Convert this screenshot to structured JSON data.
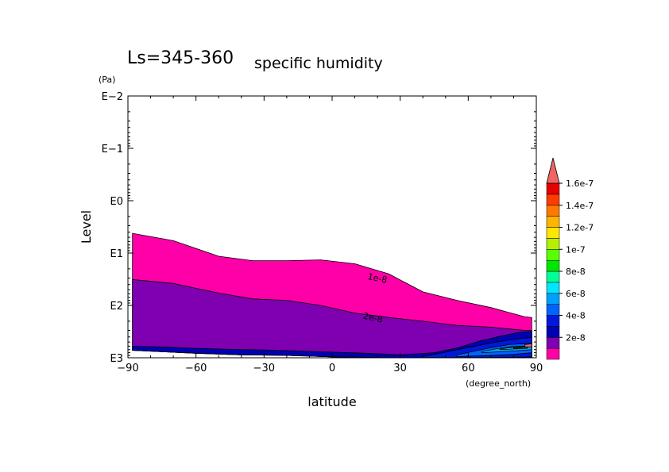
{
  "chart_data": {
    "type": "contour",
    "title_period": "Ls=345-360",
    "title_variable": "specific humidity",
    "xlabel": "latitude",
    "x_units": "(degree_north)",
    "ylabel": "Level",
    "y_units": "(Pa)",
    "xlim": [
      -90,
      90
    ],
    "x_ticks": [
      -90,
      -60,
      -30,
      0,
      30,
      60,
      90
    ],
    "x_tick_labels": [
      "−90",
      "−60",
      "−30",
      "0",
      "30",
      "60",
      "90"
    ],
    "y_scale": "log",
    "y_decade_exponents": [
      -2,
      -1,
      0,
      1,
      2,
      3
    ],
    "y_tick_labels": [
      "E−2",
      "E−1",
      "E0",
      "E1",
      "E2",
      "E3"
    ],
    "colorbar": {
      "levels": [
        0,
        1e-08,
        2e-08,
        3e-08,
        4e-08,
        5e-08,
        6e-08,
        7e-08,
        8e-08,
        9e-08,
        1e-07,
        1.1e-07,
        1.2e-07,
        1.3e-07,
        1.4e-07,
        1.5e-07,
        1.6e-07,
        1.7e-07
      ],
      "colors": [
        "#ff00a8",
        "#7e00b0",
        "#0000b4",
        "#0018dc",
        "#0064ff",
        "#00a0ff",
        "#00e6ff",
        "#00ff96",
        "#00e600",
        "#5aff00",
        "#b4f000",
        "#ffe600",
        "#ffb400",
        "#ff7800",
        "#ff3c00",
        "#e60000",
        "#f06464"
      ],
      "labels": [
        "2e-8",
        "4e-8",
        "6e-8",
        "8e-8",
        "1e-7",
        "1.2e-7",
        "1.4e-7",
        "1.6e-7"
      ],
      "label_levels": [
        2e-08,
        4e-08,
        6e-08,
        8e-08,
        1e-07,
        1.2e-07,
        1.4e-07,
        1.6e-07
      ],
      "extend": "max"
    },
    "contour_labels": [
      {
        "text": "1e-8",
        "lat": 20,
        "pressure": 30
      },
      {
        "text": "2e-8",
        "lat": 18,
        "pressure": 170
      }
    ],
    "regions": [
      {
        "name": "band_0_1e-8",
        "color": "#ff00a8",
        "top": [
          [
            -88,
            4.2
          ],
          [
            -70,
            5.8
          ],
          [
            -50,
            11.5
          ],
          [
            -35,
            14
          ],
          [
            -20,
            14
          ],
          [
            -5,
            13.5
          ],
          [
            10,
            16
          ],
          [
            25,
            25
          ],
          [
            40,
            55
          ],
          [
            55,
            80
          ],
          [
            70,
            110
          ],
          [
            85,
            165
          ],
          [
            88,
            170
          ]
        ],
        "bottom": [
          [
            -88,
            720
          ],
          [
            -60,
            820
          ],
          [
            -40,
            880
          ],
          [
            -20,
            900
          ],
          [
            0,
            960
          ],
          [
            30,
            1000
          ],
          [
            60,
            1000
          ],
          [
            88,
            1000
          ]
        ]
      },
      {
        "name": "band_1e-8_2e-8",
        "color": "#7e00b0",
        "top": [
          [
            -88,
            32
          ],
          [
            -70,
            38
          ],
          [
            -50,
            58
          ],
          [
            -35,
            75
          ],
          [
            -20,
            80
          ],
          [
            -5,
            100
          ],
          [
            10,
            140
          ],
          [
            25,
            170
          ],
          [
            40,
            200
          ],
          [
            55,
            240
          ],
          [
            70,
            260
          ],
          [
            85,
            300
          ],
          [
            88,
            300
          ]
        ],
        "bottom": [
          [
            -88,
            720
          ],
          [
            -60,
            820
          ],
          [
            -40,
            880
          ],
          [
            -20,
            900
          ],
          [
            0,
            960
          ],
          [
            30,
            1000
          ],
          [
            60,
            1000
          ],
          [
            88,
            1000
          ]
        ]
      },
      {
        "name": "band_2e-8_3e-8",
        "color": "#0000b4",
        "top": [
          [
            -88,
            600
          ],
          [
            -75,
            620
          ],
          [
            -60,
            660
          ],
          [
            -45,
            690
          ],
          [
            -30,
            710
          ],
          [
            -15,
            740
          ],
          [
            0,
            780
          ],
          [
            15,
            820
          ],
          [
            30,
            880
          ],
          [
            45,
            800
          ],
          [
            55,
            650
          ],
          [
            65,
            480
          ],
          [
            75,
            380
          ],
          [
            82,
            330
          ],
          [
            88,
            310
          ]
        ],
        "bottom": [
          [
            -88,
            720
          ],
          [
            -60,
            820
          ],
          [
            -40,
            880
          ],
          [
            -20,
            900
          ],
          [
            0,
            960
          ],
          [
            30,
            1000
          ],
          [
            60,
            1000
          ],
          [
            88,
            1000
          ]
        ]
      },
      {
        "name": "band_3e-8_4e-8",
        "color": "#0018dc",
        "top": [
          [
            40,
            950
          ],
          [
            50,
            780
          ],
          [
            60,
            640
          ],
          [
            70,
            520
          ],
          [
            78,
            460
          ],
          [
            85,
            420
          ],
          [
            88,
            410
          ]
        ],
        "bottom": [
          [
            40,
            990
          ],
          [
            60,
            990
          ],
          [
            80,
            980
          ],
          [
            88,
            960
          ]
        ]
      },
      {
        "name": "band_4e-8_5e-8",
        "color": "#0064ff",
        "top": [
          [
            55,
            880
          ],
          [
            62,
            760
          ],
          [
            70,
            640
          ],
          [
            78,
            560
          ],
          [
            84,
            540
          ],
          [
            88,
            540
          ]
        ],
        "bottom": [
          [
            55,
            950
          ],
          [
            70,
            900
          ],
          [
            80,
            860
          ],
          [
            88,
            800
          ]
        ]
      },
      {
        "name": "band_5e-8_6e-8",
        "color": "#00a0ff",
        "top": [
          [
            66,
            760
          ],
          [
            72,
            680
          ],
          [
            78,
            620
          ],
          [
            84,
            600
          ],
          [
            88,
            600
          ]
        ],
        "bottom": [
          [
            66,
            800
          ],
          [
            76,
            760
          ],
          [
            84,
            720
          ],
          [
            88,
            700
          ]
        ]
      },
      {
        "name": "band_6e-8_8e-8",
        "color": "#00e6ff",
        "top": [
          [
            74,
            680
          ],
          [
            80,
            630
          ],
          [
            86,
            610
          ]
        ],
        "bottom": [
          [
            74,
            700
          ],
          [
            80,
            680
          ],
          [
            86,
            660
          ]
        ]
      },
      {
        "name": "band_9e-8_1e-7",
        "color": "#00ff96",
        "top": [
          [
            80,
            640
          ],
          [
            86,
            620
          ]
        ],
        "bottom": [
          [
            80,
            660
          ],
          [
            86,
            650
          ]
        ]
      },
      {
        "name": "band_max",
        "color": "#f06464",
        "top": [
          [
            85,
            560
          ],
          [
            88,
            540
          ]
        ],
        "bottom": [
          [
            85,
            620
          ],
          [
            88,
            620
          ]
        ]
      }
    ]
  }
}
